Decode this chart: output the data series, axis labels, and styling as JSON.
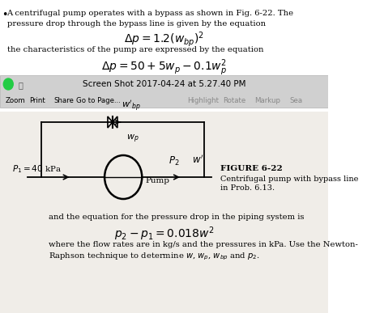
{
  "bg_color": "#f0f0f0",
  "white_bg": "#ffffff",
  "text_color": "#000000",
  "gray_text": "#888888",
  "title_bar_text": "Screen Shot 2017-04-24 at 5.27.40 PM",
  "toolbar_items": [
    "Zoom",
    "Print",
    "Share",
    "Go to Page...",
    "Highlight",
    "Rotate",
    "Markup",
    "Sea"
  ],
  "line1": "A centrifugal pump operates with a bypass as shown in Fig. 6-22. The",
  "line2": "pressure drop through the bypass line is given by the equation",
  "eq1": "$\\Delta p = 1.2(w_{bp})^2$",
  "line3": "the characteristics of the pump are expressed by the equation",
  "eq2": "$\\Delta p = 50 + 5w_p - 0.1w_p^2$",
  "line4": "and the equation for the pressure drop in the piping system is",
  "eq3": "$p_2 - p_1 = 0.018w^2$",
  "line5": "where the flow rates are in kg/s and the pressures in kPa. Use the Newton-",
  "line6": "Raphson technique to determine $w$, $w_p$, $w_{bp}$ and $p_2$.",
  "fig_caption1": "FIGURE 6-22",
  "fig_caption2": "Centrifugal pump with bypass line",
  "fig_caption3": "in Prob. 6.13.",
  "p1_label": "$P_1 = 40$ kPa",
  "p2_label": "$P_2$",
  "w_bp_label": "$w'_{bp}$",
  "w_p_label": "$w_p$",
  "w_label": "$w'$",
  "pump_label": "Pump"
}
